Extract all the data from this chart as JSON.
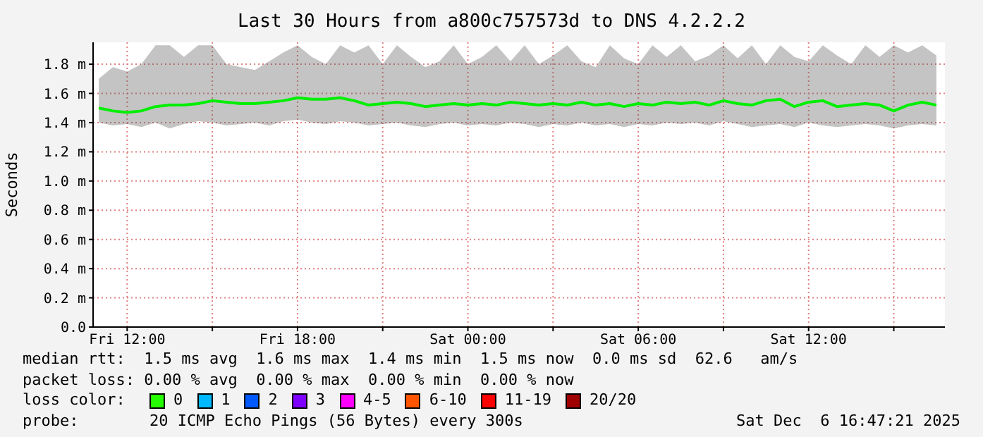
{
  "chart_data": {
    "type": "line",
    "title": "Last 30 Hours from a800c757573d to DNS 4.2.2.2",
    "ylabel": "Seconds",
    "x": [
      "2025-12-05T11:00",
      "2025-12-05T11:30",
      "2025-12-05T12:00",
      "2025-12-05T12:30",
      "2025-12-05T13:00",
      "2025-12-05T13:30",
      "2025-12-05T14:00",
      "2025-12-05T14:30",
      "2025-12-05T15:00",
      "2025-12-05T15:30",
      "2025-12-05T16:00",
      "2025-12-05T16:30",
      "2025-12-05T17:00",
      "2025-12-05T17:30",
      "2025-12-05T18:00",
      "2025-12-05T18:30",
      "2025-12-05T19:00",
      "2025-12-05T19:30",
      "2025-12-05T20:00",
      "2025-12-05T20:30",
      "2025-12-05T21:00",
      "2025-12-05T21:30",
      "2025-12-05T22:00",
      "2025-12-05T22:30",
      "2025-12-05T23:00",
      "2025-12-05T23:30",
      "2025-12-06T00:00",
      "2025-12-06T00:30",
      "2025-12-06T01:00",
      "2025-12-06T01:30",
      "2025-12-06T02:00",
      "2025-12-06T02:30",
      "2025-12-06T03:00",
      "2025-12-06T03:30",
      "2025-12-06T04:00",
      "2025-12-06T04:30",
      "2025-12-06T05:00",
      "2025-12-06T05:30",
      "2025-12-06T06:00",
      "2025-12-06T06:30",
      "2025-12-06T07:00",
      "2025-12-06T07:30",
      "2025-12-06T08:00",
      "2025-12-06T08:30",
      "2025-12-06T09:00",
      "2025-12-06T09:30",
      "2025-12-06T10:00",
      "2025-12-06T10:30",
      "2025-12-06T11:00",
      "2025-12-06T11:30",
      "2025-12-06T12:00",
      "2025-12-06T12:30",
      "2025-12-06T13:00",
      "2025-12-06T13:30",
      "2025-12-06T14:00",
      "2025-12-06T14:30",
      "2025-12-06T15:00",
      "2025-12-06T15:30",
      "2025-12-06T16:00",
      "2025-12-06T16:30"
    ],
    "series": [
      {
        "color": "#00ee00",
        "values": [
          1.5,
          1.48,
          1.47,
          1.48,
          1.51,
          1.52,
          1.52,
          1.53,
          1.55,
          1.54,
          1.53,
          1.53,
          1.54,
          1.55,
          1.57,
          1.56,
          1.56,
          1.57,
          1.55,
          1.52,
          1.53,
          1.54,
          1.53,
          1.51,
          1.52,
          1.53,
          1.52,
          1.53,
          1.52,
          1.54,
          1.53,
          1.52,
          1.53,
          1.52,
          1.54,
          1.52,
          1.53,
          1.51,
          1.53,
          1.52,
          1.54,
          1.53,
          1.54,
          1.52,
          1.55,
          1.53,
          1.52,
          1.55,
          1.56,
          1.51,
          1.54,
          1.55,
          1.51,
          1.52,
          1.53,
          1.52,
          1.48,
          1.52,
          1.54,
          1.52
        ],
        "lower": [
          1.4,
          1.38,
          1.39,
          1.37,
          1.4,
          1.36,
          1.39,
          1.41,
          1.4,
          1.38,
          1.39,
          1.4,
          1.38,
          1.41,
          1.42,
          1.4,
          1.39,
          1.41,
          1.4,
          1.38,
          1.39,
          1.4,
          1.38,
          1.37,
          1.39,
          1.4,
          1.38,
          1.39,
          1.38,
          1.4,
          1.39,
          1.37,
          1.39,
          1.38,
          1.4,
          1.38,
          1.39,
          1.37,
          1.39,
          1.38,
          1.4,
          1.39,
          1.4,
          1.38,
          1.41,
          1.39,
          1.37,
          1.38,
          1.39,
          1.37,
          1.4,
          1.38,
          1.37,
          1.38,
          1.39,
          1.38,
          1.36,
          1.38,
          1.39,
          1.38
        ],
        "upper": [
          1.7,
          1.78,
          1.75,
          1.8,
          1.93,
          1.93,
          1.85,
          1.93,
          1.93,
          1.8,
          1.78,
          1.76,
          1.82,
          1.88,
          1.93,
          1.85,
          1.8,
          1.93,
          1.88,
          1.93,
          1.8,
          1.93,
          1.85,
          1.78,
          1.82,
          1.93,
          1.8,
          1.85,
          1.93,
          1.82,
          1.93,
          1.8,
          1.86,
          1.93,
          1.82,
          1.78,
          1.93,
          1.84,
          1.8,
          1.93,
          1.85,
          1.93,
          1.82,
          1.86,
          1.93,
          1.84,
          1.93,
          1.8,
          1.93,
          1.85,
          1.82,
          1.93,
          1.86,
          1.8,
          1.93,
          1.85,
          1.93,
          1.88,
          1.93,
          1.86
        ]
      }
    ],
    "xlim": [
      "2025-12-05T10:48",
      "2025-12-06T16:48"
    ],
    "xticks": [
      {
        "value": "2025-12-05T12:00",
        "label": "Fri 12:00"
      },
      {
        "value": "2025-12-05T15:00",
        "label": null
      },
      {
        "value": "2025-12-05T18:00",
        "label": "Fri 18:00"
      },
      {
        "value": "2025-12-05T21:00",
        "label": null
      },
      {
        "value": "2025-12-06T00:00",
        "label": "Sat 00:00"
      },
      {
        "value": "2025-12-06T03:00",
        "label": null
      },
      {
        "value": "2025-12-06T06:00",
        "label": "Sat 06:00"
      },
      {
        "value": "2025-12-06T09:00",
        "label": null
      },
      {
        "value": "2025-12-06T12:00",
        "label": "Sat 12:00"
      },
      {
        "value": "2025-12-06T15:00",
        "label": null
      }
    ],
    "ylim": [
      0,
      1.95
    ],
    "yticks": [
      {
        "value": 0,
        "label": "0.0"
      },
      {
        "value": 0.2,
        "label": "0.2 m"
      },
      {
        "value": 0.4,
        "label": "0.4 m"
      },
      {
        "value": 0.6,
        "label": "0.6 m"
      },
      {
        "value": 0.8,
        "label": "0.8 m"
      },
      {
        "value": 1.0,
        "label": "1.0 m"
      },
      {
        "value": 1.2,
        "label": "1.2 m"
      },
      {
        "value": 1.4,
        "label": "1.4 m"
      },
      {
        "value": 1.6,
        "label": "1.6 m"
      },
      {
        "value": 1.8,
        "label": "1.8 m"
      }
    ],
    "grid": true,
    "annotations": [
      "median rtt:  1.5 ms avg  1.6 ms max  1.4 ms min  1.5 ms now  0.0 ms sd  62.6   am/s",
      "packet loss: 0.00 % avg  0.00 % max  0.00 % min  0.00 % now",
      "loss color:",
      "0",
      "1",
      "2",
      "3",
      "4-5",
      "6-10",
      "11-19",
      "20/20",
      "probe:",
      "20 ICMP Echo Pings (56 Bytes) every 300s",
      "Sat Dec  6 16:47:21 2025"
    ]
  }
}
